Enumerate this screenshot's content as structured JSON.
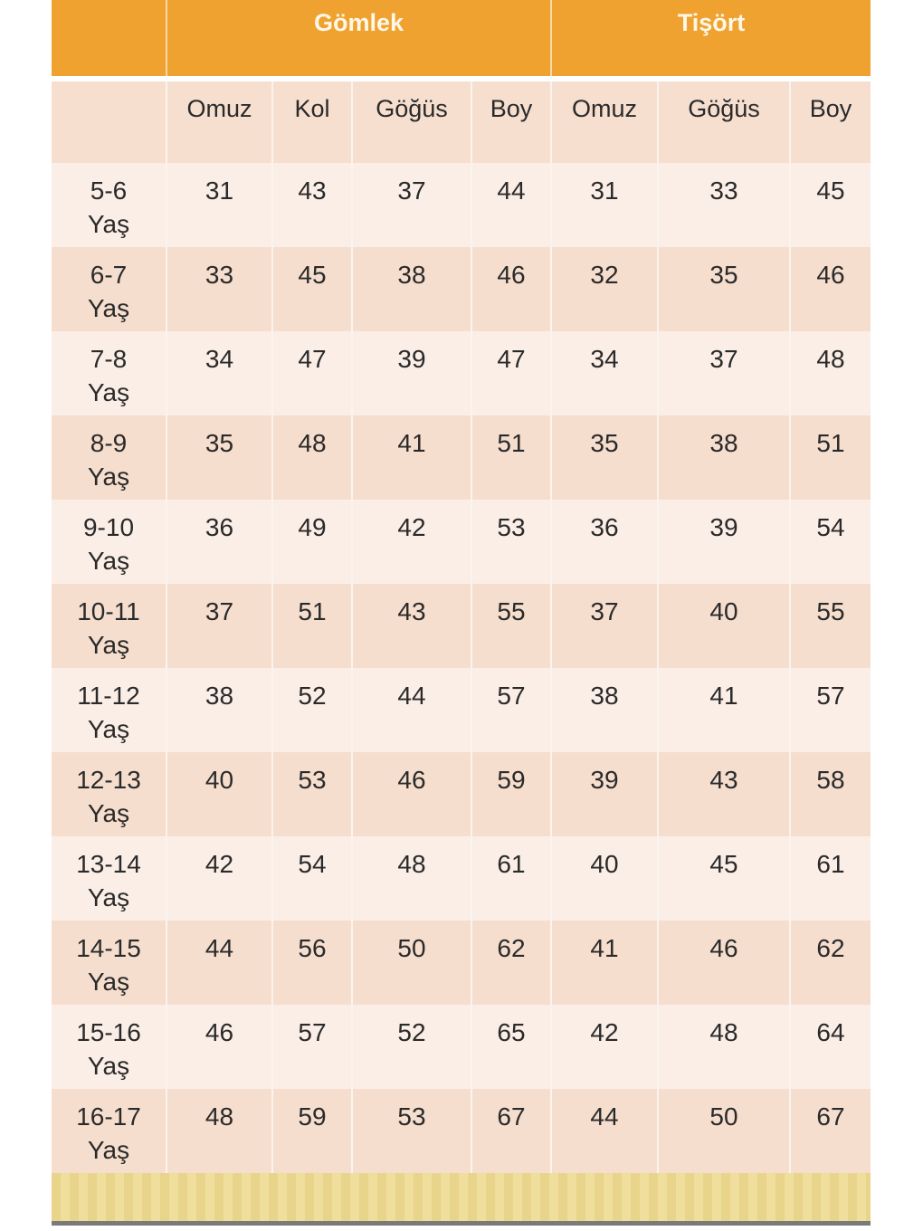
{
  "groups": [
    "",
    "Gömlek",
    "Tişört"
  ],
  "columns": [
    "",
    "Omuz",
    "Kol",
    "Göğüs",
    "Boy",
    "Omuz",
    "Göğüs",
    "Boy"
  ],
  "rows": [
    {
      "age": "5-6",
      "unit": "Yaş",
      "values": [
        "31",
        "43",
        "37",
        "44",
        "31",
        "33",
        "45"
      ]
    },
    {
      "age": "6-7",
      "unit": "Yaş",
      "values": [
        "33",
        "45",
        "38",
        "46",
        "32",
        "35",
        "46"
      ]
    },
    {
      "age": "7-8",
      "unit": "Yaş",
      "values": [
        "34",
        "47",
        "39",
        "47",
        "34",
        "37",
        "48"
      ]
    },
    {
      "age": "8-9",
      "unit": "Yaş",
      "values": [
        "35",
        "48",
        "41",
        "51",
        "35",
        "38",
        "51"
      ]
    },
    {
      "age": "9-10",
      "unit": "Yaş",
      "values": [
        "36",
        "49",
        "42",
        "53",
        "36",
        "39",
        "54"
      ]
    },
    {
      "age": "10-11",
      "unit": "Yaş",
      "values": [
        "37",
        "51",
        "43",
        "55",
        "37",
        "40",
        "55"
      ]
    },
    {
      "age": "11-12",
      "unit": "Yaş",
      "values": [
        "38",
        "52",
        "44",
        "57",
        "38",
        "41",
        "57"
      ]
    },
    {
      "age": "12-13",
      "unit": "Yaş",
      "values": [
        "40",
        "53",
        "46",
        "59",
        "39",
        "43",
        "58"
      ]
    },
    {
      "age": "13-14",
      "unit": "Yaş",
      "values": [
        "42",
        "54",
        "48",
        "61",
        "40",
        "45",
        "61"
      ]
    },
    {
      "age": "14-15",
      "unit": "Yaş",
      "values": [
        "44",
        "56",
        "50",
        "62",
        "41",
        "46",
        "62"
      ]
    },
    {
      "age": "15-16",
      "unit": "Yaş",
      "values": [
        "46",
        "57",
        "52",
        "65",
        "42",
        "48",
        "64"
      ]
    },
    {
      "age": "16-17",
      "unit": "Yaş",
      "values": [
        "48",
        "59",
        "53",
        "67",
        "44",
        "50",
        "67"
      ]
    }
  ],
  "colors": {
    "header": "#efa22f",
    "row_light": "#fbeee7",
    "row_dark": "#f6dece",
    "footer": "#e8d48a"
  }
}
